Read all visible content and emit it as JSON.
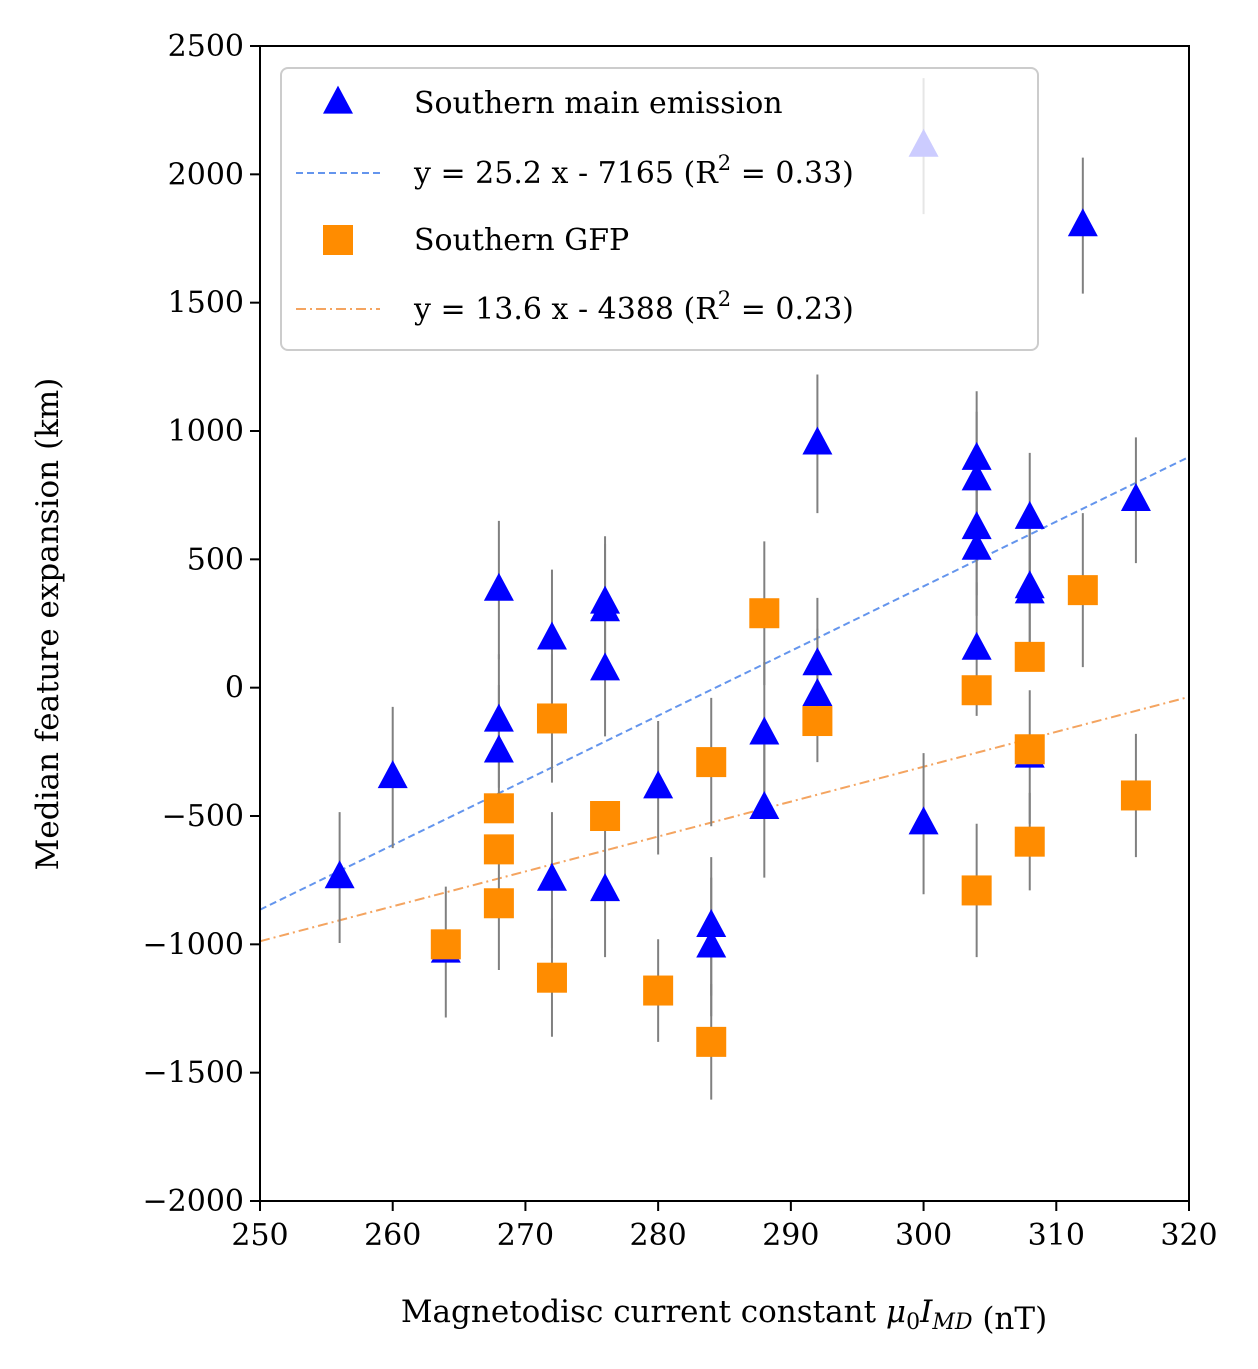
{
  "chart_data": {
    "type": "scatter",
    "xlabel_prefix": "Magnetodisc current constant ",
    "xlabel_math": "μ0IMD",
    "xlabel_suffix": " (nT)",
    "ylabel": "Median feature expansion (km)",
    "xlim": [
      250,
      320
    ],
    "ylim": [
      -2000,
      2500
    ],
    "xticks": [
      250,
      260,
      270,
      280,
      290,
      300,
      310,
      320
    ],
    "yticks": [
      -2000,
      -1500,
      -1000,
      -500,
      0,
      500,
      1000,
      1500,
      2000,
      2500
    ],
    "xtick_labels": [
      "250",
      "260",
      "270",
      "280",
      "290",
      "300",
      "310",
      "320"
    ],
    "ytick_labels": [
      "−2000",
      "−1500",
      "−1000",
      "−500",
      "0",
      "500",
      "1000",
      "1500",
      "2000",
      "2500"
    ],
    "legend_position": "upper-left",
    "error_bar_color": "#808080",
    "series": [
      {
        "name": "Southern main emission",
        "marker": "triangle",
        "color": "#0000ff",
        "points": [
          {
            "x": 256,
            "y": -740,
            "err": 255
          },
          {
            "x": 260,
            "y": -350,
            "err": 275
          },
          {
            "x": 264,
            "y": -1030,
            "err": 255
          },
          {
            "x": 268,
            "y": 380,
            "err": 270
          },
          {
            "x": 268,
            "y": -130,
            "err": 260
          },
          {
            "x": 268,
            "y": -250,
            "err": 260
          },
          {
            "x": 272,
            "y": 190,
            "err": 270
          },
          {
            "x": 272,
            "y": -750,
            "err": 265
          },
          {
            "x": 276,
            "y": 330,
            "err": 260
          },
          {
            "x": 276,
            "y": 300,
            "err": 260
          },
          {
            "x": 276,
            "y": 70,
            "err": 260
          },
          {
            "x": 276,
            "y": -790,
            "err": 260
          },
          {
            "x": 280,
            "y": -390,
            "err": 260
          },
          {
            "x": 284,
            "y": -930,
            "err": 270
          },
          {
            "x": 284,
            "y": -1010,
            "err": 270
          },
          {
            "x": 288,
            "y": -180,
            "err": 280
          },
          {
            "x": 288,
            "y": -470,
            "err": 270
          },
          {
            "x": 292,
            "y": 950,
            "err": 270
          },
          {
            "x": 292,
            "y": 90,
            "err": 260
          },
          {
            "x": 292,
            "y": -30,
            "err": 260
          },
          {
            "x": 300,
            "y": 2110,
            "err": 265
          },
          {
            "x": 300,
            "y": -530,
            "err": 275
          },
          {
            "x": 304,
            "y": 890,
            "err": 265
          },
          {
            "x": 304,
            "y": 810,
            "err": 265
          },
          {
            "x": 304,
            "y": 620,
            "err": 260
          },
          {
            "x": 304,
            "y": 540,
            "err": 260
          },
          {
            "x": 304,
            "y": 150,
            "err": 260
          },
          {
            "x": 308,
            "y": 660,
            "err": 255
          },
          {
            "x": 308,
            "y": 390,
            "err": 265
          },
          {
            "x": 308,
            "y": 370,
            "err": 265
          },
          {
            "x": 308,
            "y": -270,
            "err": 260
          },
          {
            "x": 312,
            "y": 1800,
            "err": 265
          },
          {
            "x": 316,
            "y": 730,
            "err": 245
          }
        ]
      },
      {
        "name": "Southern GFP",
        "marker": "square",
        "color": "#ff8c00",
        "points": [
          {
            "x": 264,
            "y": -1000,
            "err": 0
          },
          {
            "x": 268,
            "y": -470,
            "err": 0
          },
          {
            "x": 268,
            "y": -630,
            "err": 0
          },
          {
            "x": 268,
            "y": -840,
            "err": 260
          },
          {
            "x": 272,
            "y": -120,
            "err": 250
          },
          {
            "x": 272,
            "y": -1130,
            "err": 230
          },
          {
            "x": 276,
            "y": -500,
            "err": 0
          },
          {
            "x": 280,
            "y": -1180,
            "err": 200
          },
          {
            "x": 284,
            "y": -290,
            "err": 250
          },
          {
            "x": 284,
            "y": -1380,
            "err": 225
          },
          {
            "x": 288,
            "y": 290,
            "err": 280
          },
          {
            "x": 292,
            "y": -130,
            "err": 0
          },
          {
            "x": 304,
            "y": -10,
            "err": 0
          },
          {
            "x": 304,
            "y": -790,
            "err": 260
          },
          {
            "x": 308,
            "y": 120,
            "err": 0
          },
          {
            "x": 308,
            "y": -240,
            "err": 0
          },
          {
            "x": 308,
            "y": -600,
            "err": 190
          },
          {
            "x": 312,
            "y": 380,
            "err": 300
          },
          {
            "x": 316,
            "y": -420,
            "err": 240
          }
        ]
      }
    ],
    "fits": [
      {
        "name": "y = 25.2 x - 7165 (R² = 0.33)",
        "label_main": "y = 25.2 x - 7165 (R",
        "label_sup": "2",
        "label_end": " = 0.33)",
        "slope": 25.2,
        "intercept": -7165,
        "color": "#6495ed",
        "dash": "dashed"
      },
      {
        "name": "y = 13.6 x - 4388 (R² = 0.23)",
        "label_main": "y = 13.6 x - 4388 (R",
        "label_sup": "2",
        "label_end": " = 0.23)",
        "slope": 13.6,
        "intercept": -4388,
        "color": "#f4a460",
        "dash": "dashdot"
      }
    ]
  }
}
